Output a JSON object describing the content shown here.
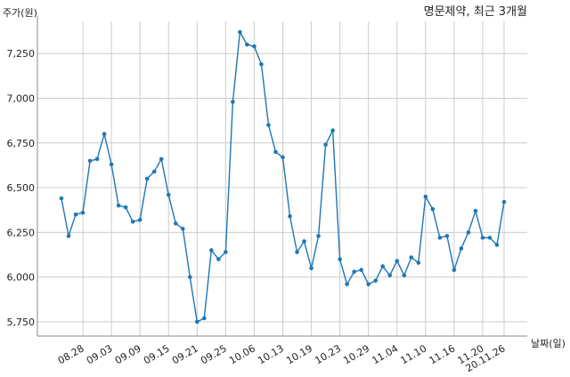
{
  "chart_data": {
    "type": "line",
    "title": "명문제약, 최근 3개월",
    "ylabel": "주가(원)",
    "xlabel": "날짜(일)",
    "ylim": [
      5670,
      7430
    ],
    "yticks": [
      5750,
      6000,
      6250,
      6500,
      6750,
      7000,
      7250
    ],
    "ytick_labels": [
      "5,750",
      "6,000",
      "6,250",
      "6,500",
      "6,750",
      "7,000",
      "7,250"
    ],
    "xtick_labels": [
      "08.28",
      "09.03",
      "09.09",
      "09.15",
      "09.21",
      "09.25",
      "10.06",
      "10.13",
      "10.19",
      "10.23",
      "10.29",
      "11.04",
      "11.10",
      "11.16",
      "11.20",
      "20.11.26"
    ],
    "xtick_index": [
      3,
      7,
      11,
      15,
      19,
      23,
      27,
      31,
      35,
      39,
      43,
      47,
      51,
      55,
      59,
      62
    ],
    "grid": true,
    "series": [
      {
        "color": "#1f77b4",
        "values": [
          6440,
          6230,
          6350,
          6360,
          6650,
          6660,
          6800,
          6630,
          6400,
          6390,
          6310,
          6320,
          6550,
          6590,
          6660,
          6460,
          6300,
          6270,
          6000,
          5750,
          5770,
          6150,
          6100,
          6140,
          6980,
          7370,
          7300,
          7290,
          7190,
          6850,
          6700,
          6670,
          6340,
          6140,
          6200,
          6050,
          6230,
          6740,
          6820,
          6100,
          5960,
          6030,
          6040,
          5960,
          5980,
          6060,
          6010,
          6090,
          6010,
          6110,
          6080,
          6450,
          6380,
          6220,
          6230,
          6040,
          6160,
          6250,
          6370,
          6220,
          6220,
          6180,
          6420
        ]
      }
    ]
  }
}
